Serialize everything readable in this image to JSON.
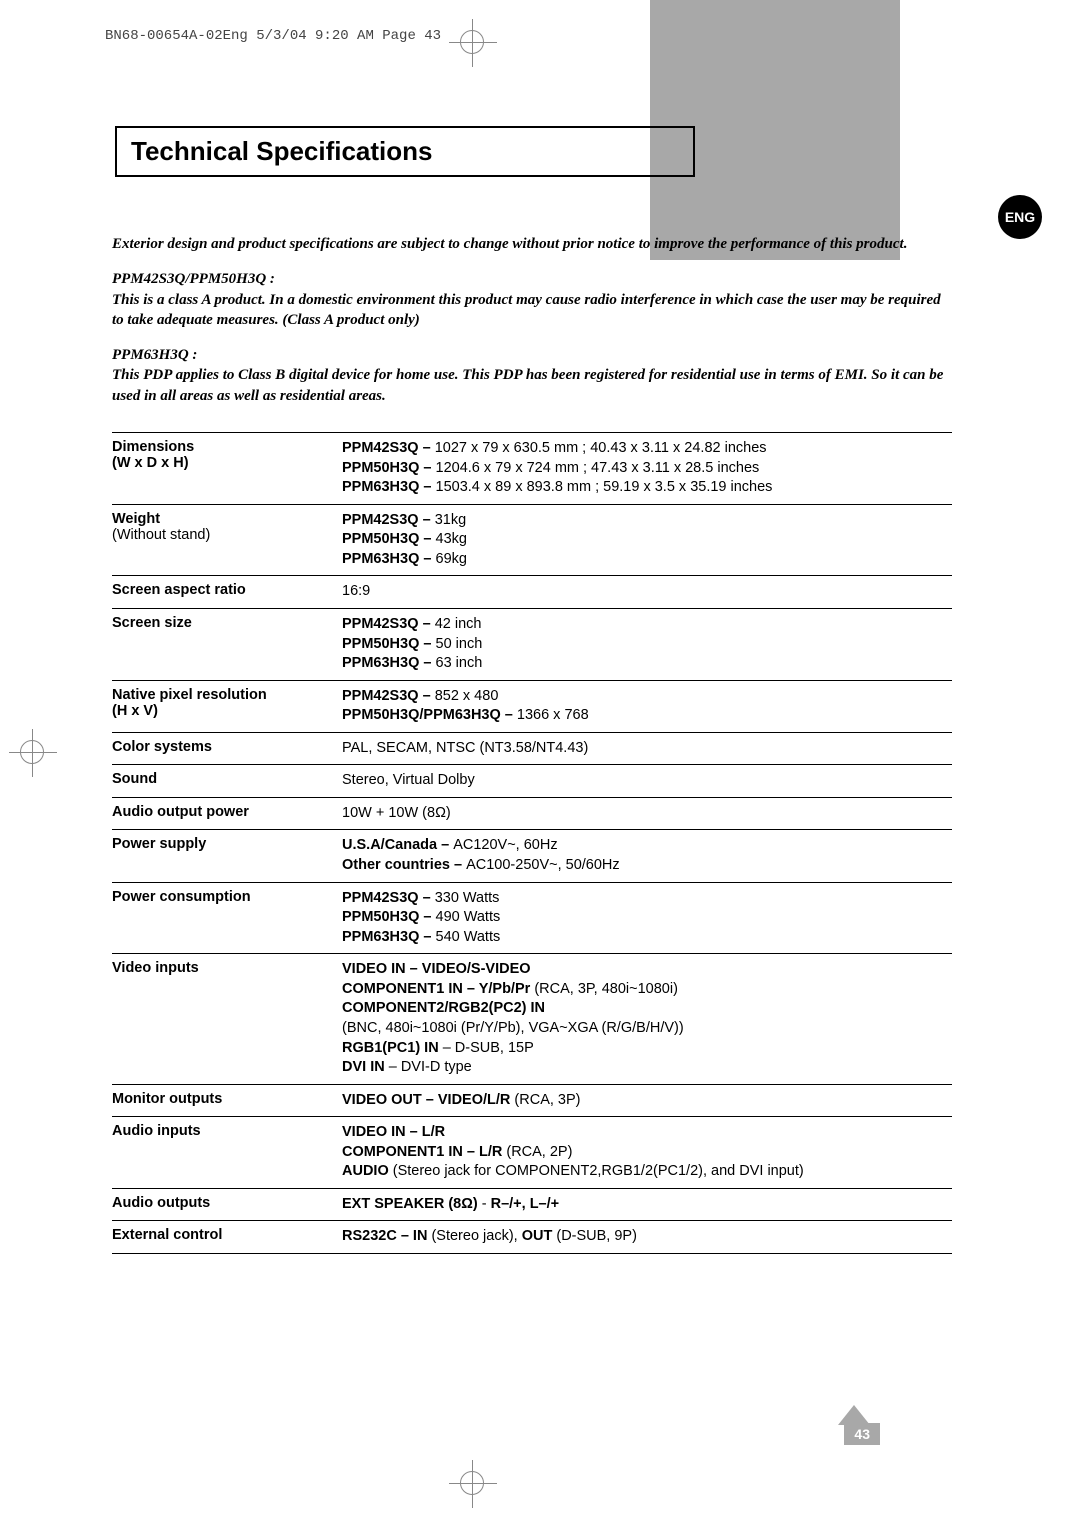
{
  "header": {
    "doc_id": "BN68-00654A-02Eng  5/3/04  9:20 AM  Page 43"
  },
  "badge": {
    "lang": "ENG"
  },
  "title": "Technical Specifications",
  "intro": {
    "p1": "Exterior design and product specifications are subject to change without prior notice to improve the performance of this product.",
    "p2_head": "PPM42S3Q/PPM50H3Q :",
    "p2": "This is a class A product. In a domestic environment this product may cause radio interference in which case the user may be required to take adequate measures. (Class A product only)",
    "p3_head": "PPM63H3Q :",
    "p3": "This PDP applies to Class B digital device for home use. This PDP has been registered for residential use in terms of EMI. So it can be used in all areas as well as residential areas."
  },
  "specs": {
    "dimensions": {
      "label": "Dimensions",
      "sublabel": "(W x D x H)",
      "l1m": "PPM42S3Q – ",
      "l1n": "1027 x 79 x 630.5 mm ; 40.43 x 3.11 x 24.82 inches",
      "l2m": "PPM50H3Q – ",
      "l2n": "1204.6 x 79 x 724 mm ; 47.43 x 3.11 x 28.5 inches",
      "l3m": "PPM63H3Q – ",
      "l3n": "1503.4 x 89 x 893.8 mm ; 59.19 x 3.5 x 35.19 inches"
    },
    "weight": {
      "label": "Weight",
      "sublabel": "(Without stand)",
      "l1m": "PPM42S3Q – ",
      "l1n": "31kg",
      "l2m": "PPM50H3Q – ",
      "l2n": "43kg",
      "l3m": "PPM63H3Q – ",
      "l3n": "69kg"
    },
    "aspect": {
      "label": "Screen aspect ratio",
      "value": "16:9"
    },
    "size": {
      "label": "Screen size",
      "l1m": "PPM42S3Q – ",
      "l1n": "42 inch",
      "l2m": "PPM50H3Q – ",
      "l2n": "50 inch",
      "l3m": "PPM63H3Q – ",
      "l3n": "63 inch"
    },
    "native": {
      "label": "Native pixel resolution",
      "sublabel": "(H x V)",
      "l1m": "PPM42S3Q – ",
      "l1n": "852 x 480",
      "l2m": "PPM50H3Q/PPM63H3Q – ",
      "l2n": "1366 x 768"
    },
    "color": {
      "label": "Color systems",
      "value": "PAL, SECAM, NTSC (NT3.58/NT4.43)"
    },
    "sound": {
      "label": "Sound",
      "value": "Stereo, Virtual Dolby"
    },
    "audio_power": {
      "label": "Audio output power",
      "value": "10W + 10W (8Ω)"
    },
    "power_supply": {
      "label": "Power supply",
      "l1m": "U.S.A/Canada – ",
      "l1n": "AC120V~, 60Hz",
      "l2m": "Other countries – ",
      "l2n": "AC100-250V~, 50/60Hz"
    },
    "power_cons": {
      "label": "Power consumption",
      "l1m": "PPM42S3Q – ",
      "l1n": "330 Watts",
      "l2m": "PPM50H3Q – ",
      "l2n": "490 Watts",
      "l3m": "PPM63H3Q – ",
      "l3n": "540 Watts"
    },
    "video_in": {
      "label": "Video inputs",
      "l1": "VIDEO IN – VIDEO/S-VIDEO",
      "l2m": "COMPONENT1 IN – Y/Pb/Pr ",
      "l2n": "(RCA, 3P, 480i~1080i)",
      "l3": "COMPONENT2/RGB2(PC2) IN",
      "l4": "(BNC, 480i~1080i (Pr/Y/Pb), VGA~XGA (R/G/B/H/V))",
      "l5m": "RGB1(PC1) IN",
      "l5n": " – D-SUB, 15P",
      "l6m": "DVI IN",
      "l6n": " – DVI-D type"
    },
    "monitor_out": {
      "label": "Monitor outputs",
      "l1m": "VIDEO OUT – VIDEO/L/R ",
      "l1n": "(RCA, 3P)"
    },
    "audio_in": {
      "label": "Audio inputs",
      "l1": "VIDEO IN – L/R",
      "l2m": "COMPONENT1 IN – L/R ",
      "l2n": "(RCA, 2P)",
      "l3m": "AUDIO ",
      "l3n": "(Stereo jack for COMPONENT2,RGB1/2(PC1/2), and DVI input)"
    },
    "audio_out": {
      "label": "Audio outputs",
      "l1m": "EXT SPEAKER (8Ω)",
      "l1n": " - ",
      "l1m2": "R–/+, L–/+"
    },
    "ext_ctrl": {
      "label": "External control",
      "l1m": "RS232C – IN ",
      "l1n": "(Stereo jack), ",
      "l1m2": "OUT ",
      "l1n2": "(D-SUB, 9P)"
    }
  },
  "page_number": "43"
}
